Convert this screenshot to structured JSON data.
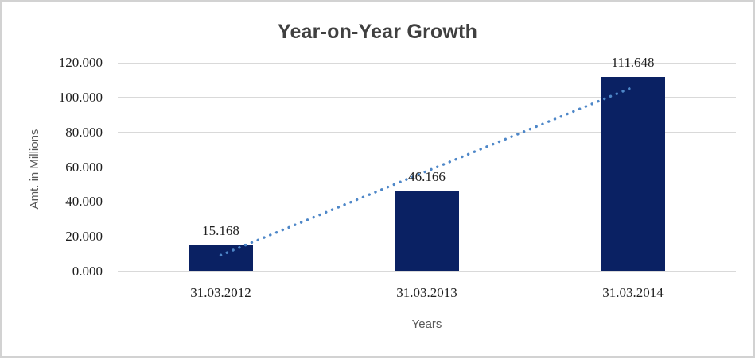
{
  "window": {
    "background": "#FFFFFF",
    "border_color": "#D2D2D2"
  },
  "chart_data": {
    "type": "bar",
    "title": "Year-on-Year Growth",
    "xlabel": "Years",
    "ylabel": "Amt. in Millions",
    "categories": [
      "31.03.2012",
      "31.03.2013",
      "31.03.2014"
    ],
    "values": [
      15168,
      46166,
      111648
    ],
    "value_labels": [
      "15.168",
      "46.166",
      "111.648"
    ],
    "ylim": [
      0,
      120000
    ],
    "y_tick_step": 20000,
    "y_tick_labels": [
      "0.000",
      "20.000",
      "40.000",
      "60.000",
      "80.000",
      "100.000",
      "120.000"
    ],
    "grid": true,
    "legend": "none",
    "bar_color": "#0A2163",
    "gridline_color": "#D9D9D9",
    "title_color": "#404040",
    "axis_title_color": "#595959",
    "label_color": "#1F1F1F",
    "trendline": {
      "type": "linear",
      "style": "round-dot",
      "color": "#4E87C8"
    }
  }
}
